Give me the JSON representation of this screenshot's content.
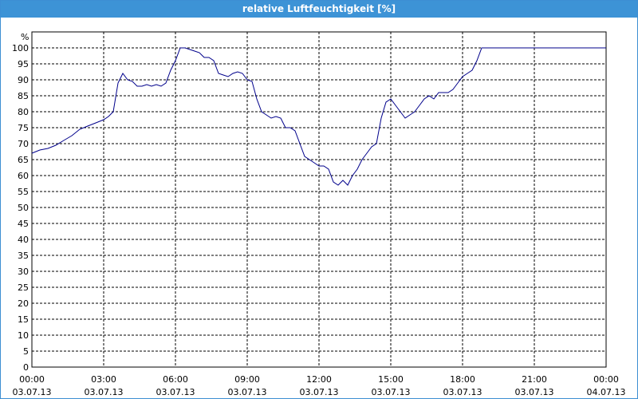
{
  "window": {
    "title": "relative Luftfeuchtigkeit [%]"
  },
  "chart_data": {
    "type": "line",
    "title": "relative Luftfeuchtigkeit [%]",
    "ylabel": "%",
    "xlabel": "",
    "ylim": [
      0,
      100
    ],
    "y_ticks": [
      0,
      5,
      10,
      15,
      20,
      25,
      30,
      35,
      40,
      45,
      50,
      55,
      60,
      65,
      70,
      75,
      80,
      85,
      90,
      95,
      100
    ],
    "grid": true,
    "x_ticks": [
      {
        "time": "00:00",
        "date": "03.07.13",
        "hour": 0
      },
      {
        "time": "03:00",
        "date": "03.07.13",
        "hour": 3
      },
      {
        "time": "06:00",
        "date": "03.07.13",
        "hour": 6
      },
      {
        "time": "09:00",
        "date": "03.07.13",
        "hour": 9
      },
      {
        "time": "12:00",
        "date": "03.07.13",
        "hour": 12
      },
      {
        "time": "15:00",
        "date": "03.07.13",
        "hour": 15
      },
      {
        "time": "18:00",
        "date": "03.07.13",
        "hour": 18
      },
      {
        "time": "21:00",
        "date": "03.07.13",
        "hour": 21
      },
      {
        "time": "00:00",
        "date": "04.07.13",
        "hour": 24
      }
    ],
    "series": [
      {
        "color": "#00008b",
        "x": [
          0,
          0.33,
          0.67,
          1,
          1.33,
          1.67,
          2,
          2.33,
          2.67,
          3,
          3.2,
          3.4,
          3.6,
          3.8,
          4,
          4.2,
          4.4,
          4.6,
          4.8,
          5,
          5.2,
          5.4,
          5.6,
          5.8,
          6,
          6.2,
          6.4,
          6.6,
          6.8,
          7,
          7.2,
          7.4,
          7.6,
          7.8,
          8,
          8.2,
          8.4,
          8.6,
          8.8,
          9,
          9.2,
          9.4,
          9.6,
          9.8,
          10,
          10.2,
          10.4,
          10.6,
          10.8,
          11,
          11.2,
          11.4,
          11.6,
          11.8,
          12,
          12.2,
          12.4,
          12.6,
          12.8,
          13,
          13.2,
          13.4,
          13.6,
          13.8,
          14,
          14.2,
          14.4,
          14.6,
          14.8,
          15,
          15.2,
          15.4,
          15.6,
          15.8,
          16,
          16.2,
          16.4,
          16.6,
          16.8,
          17,
          17.2,
          17.4,
          17.6,
          17.8,
          18,
          18.2,
          18.4,
          18.6,
          18.8,
          19,
          19.5,
          20,
          20.5,
          21,
          21.5,
          22,
          22.5,
          23,
          23.5,
          24
        ],
        "values": [
          67,
          68,
          68.5,
          69.5,
          71,
          72.5,
          74.5,
          75.5,
          76.5,
          77.5,
          78.5,
          80,
          89,
          92,
          90,
          89.5,
          88,
          88,
          88.5,
          88,
          88.5,
          88,
          89,
          93,
          96,
          100,
          100,
          99.5,
          99,
          98.5,
          97,
          97,
          96,
          92,
          91.5,
          91,
          92,
          92.5,
          92,
          90,
          89.5,
          84,
          80,
          79,
          78,
          78.5,
          78,
          75,
          75,
          74,
          70,
          66,
          65,
          64,
          63,
          63,
          62,
          58,
          57,
          58.5,
          57,
          60,
          62,
          65,
          67,
          69,
          70,
          78,
          83,
          84,
          82,
          80,
          78,
          79,
          80,
          82,
          84,
          85,
          84,
          86,
          86,
          86,
          87,
          89,
          91,
          92,
          93,
          96,
          100,
          100,
          100,
          100,
          100,
          100,
          100,
          100,
          100,
          100,
          100,
          100
        ]
      }
    ]
  }
}
